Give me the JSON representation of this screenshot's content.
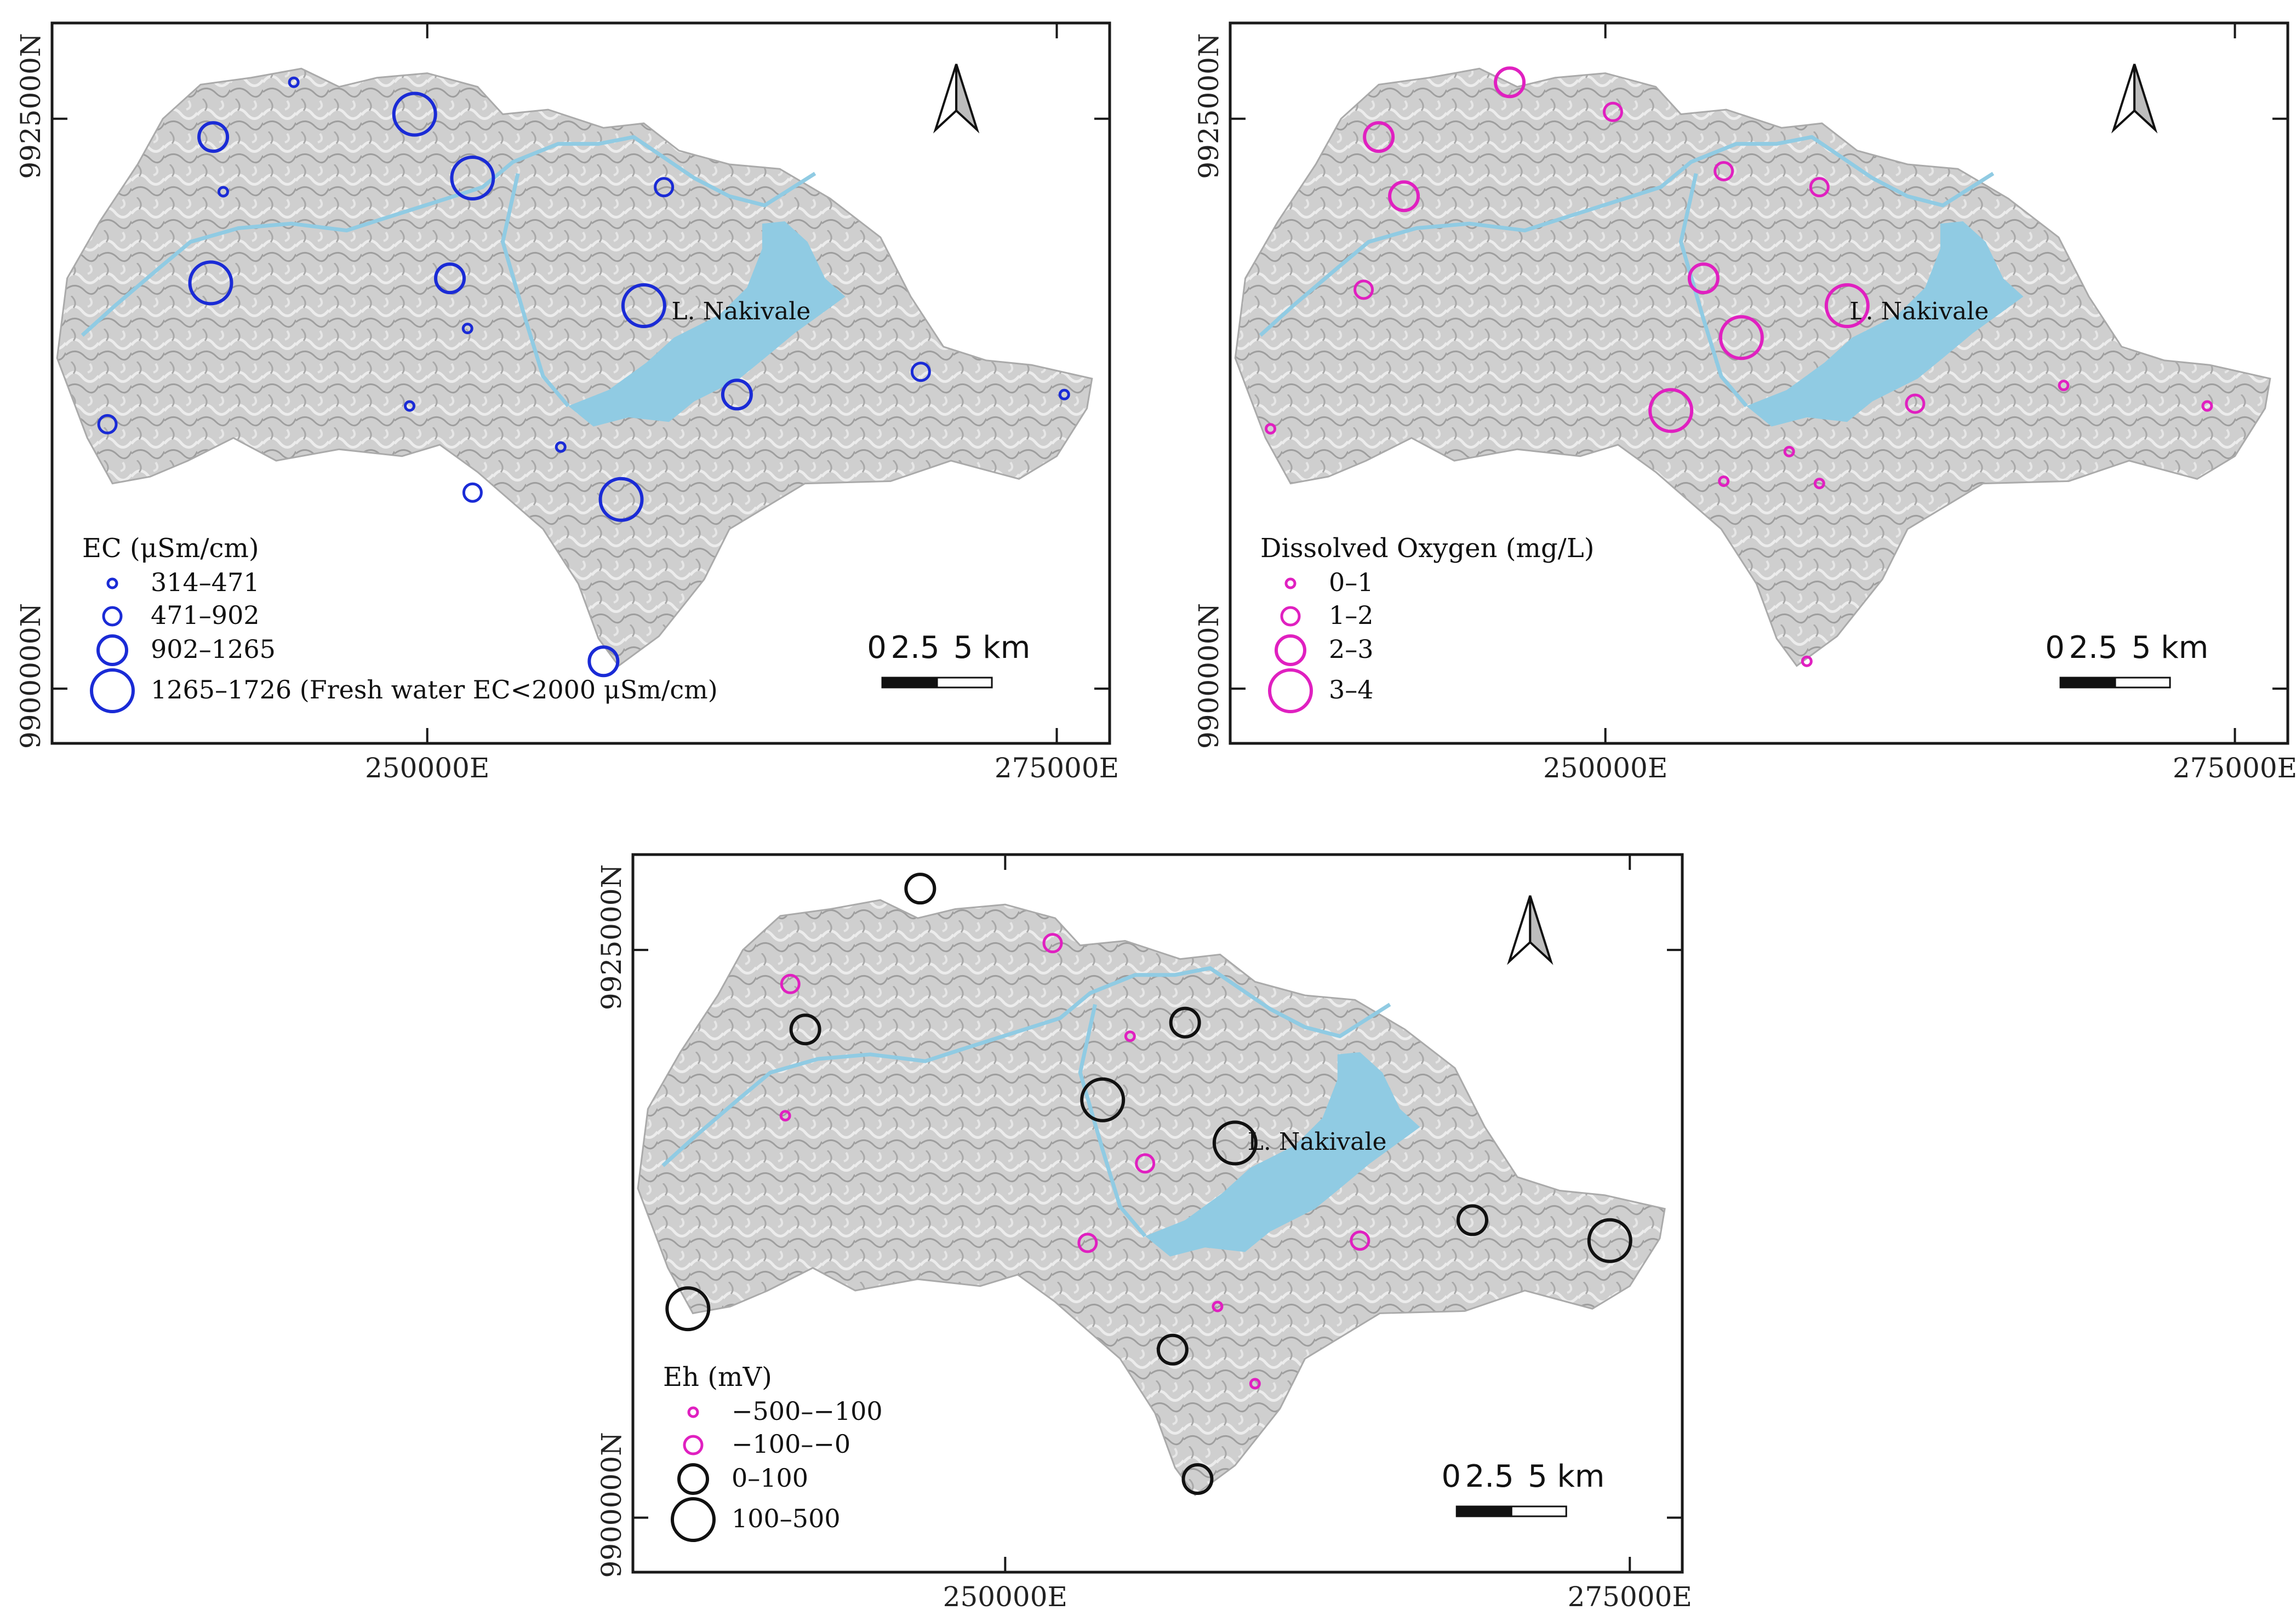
{
  "lake_label": "L. Nakivale",
  "coordinates": {
    "northing_top": "9925000N",
    "northing_bottom": "9900000N",
    "easting_left": "250000E",
    "easting_right": "275000E"
  },
  "scale_bar": {
    "labels": [
      "0",
      "2.5",
      "5 km"
    ]
  },
  "maps": [
    {
      "id": "ec",
      "legend_title": "EC (μSm/cm)",
      "color": "#1a2bd6",
      "classes": [
        {
          "label": "314–471"
        },
        {
          "label": "471–902"
        },
        {
          "label": "902–1265"
        },
        {
          "label": "1265–1726 (Fresh water EC<2000 μSm/cm)"
        }
      ],
      "points": [
        {
          "e": 244.7,
          "n": 9926.6,
          "c": 0
        },
        {
          "e": 249.5,
          "n": 9925.2,
          "c": 3
        },
        {
          "e": 241.5,
          "n": 9924.2,
          "c": 2
        },
        {
          "e": 251.8,
          "n": 9922.4,
          "c": 3
        },
        {
          "e": 241.9,
          "n": 9921.8,
          "c": 0
        },
        {
          "e": 259.4,
          "n": 9922.0,
          "c": 1
        },
        {
          "e": 241.4,
          "n": 9917.8,
          "c": 3
        },
        {
          "e": 250.9,
          "n": 9918.0,
          "c": 2
        },
        {
          "e": 258.6,
          "n": 9916.8,
          "c": 3
        },
        {
          "e": 251.6,
          "n": 9915.8,
          "c": 0
        },
        {
          "e": 269.6,
          "n": 9913.9,
          "c": 1
        },
        {
          "e": 262.3,
          "n": 9912.9,
          "c": 2
        },
        {
          "e": 275.3,
          "n": 9912.9,
          "c": 0
        },
        {
          "e": 249.3,
          "n": 9912.4,
          "c": 0
        },
        {
          "e": 237.3,
          "n": 9911.6,
          "c": 1
        },
        {
          "e": 255.3,
          "n": 9910.6,
          "c": 0
        },
        {
          "e": 251.8,
          "n": 9908.6,
          "c": 1
        },
        {
          "e": 257.7,
          "n": 9908.3,
          "c": 3
        },
        {
          "e": 257.0,
          "n": 9901.2,
          "c": 2
        }
      ]
    },
    {
      "id": "do",
      "legend_title": "Dissolved Oxygen (mg/L)",
      "color": "#e020c0",
      "classes": [
        {
          "label": "0–1"
        },
        {
          "label": "1–2"
        },
        {
          "label": "2–3"
        },
        {
          "label": "3–4"
        }
      ],
      "points": [
        {
          "e": 246.2,
          "n": 9926.6,
          "c": 2
        },
        {
          "e": 250.3,
          "n": 9925.3,
          "c": 1
        },
        {
          "e": 241.0,
          "n": 9924.2,
          "c": 2
        },
        {
          "e": 242.0,
          "n": 9921.6,
          "c": 2
        },
        {
          "e": 254.7,
          "n": 9922.7,
          "c": 1
        },
        {
          "e": 258.5,
          "n": 9922.0,
          "c": 1
        },
        {
          "e": 240.4,
          "n": 9917.5,
          "c": 1
        },
        {
          "e": 253.9,
          "n": 9918.0,
          "c": 2
        },
        {
          "e": 259.6,
          "n": 9916.8,
          "c": 3
        },
        {
          "e": 255.4,
          "n": 9915.4,
          "c": 3
        },
        {
          "e": 268.2,
          "n": 9913.3,
          "c": 0
        },
        {
          "e": 262.3,
          "n": 9912.5,
          "c": 1
        },
        {
          "e": 273.9,
          "n": 9912.4,
          "c": 0
        },
        {
          "e": 252.6,
          "n": 9912.2,
          "c": 3
        },
        {
          "e": 236.7,
          "n": 9911.4,
          "c": 0
        },
        {
          "e": 257.3,
          "n": 9910.4,
          "c": 0
        },
        {
          "e": 254.7,
          "n": 9909.1,
          "c": 0
        },
        {
          "e": 258.5,
          "n": 9909.0,
          "c": 0
        },
        {
          "e": 258.0,
          "n": 9901.2,
          "c": 0
        }
      ]
    },
    {
      "id": "eh",
      "legend_title": "Eh (mV)",
      "classes": [
        {
          "label": "−500–−100",
          "color": "#e020c0"
        },
        {
          "label": "−100–−0",
          "color": "#e020c0"
        },
        {
          "label": "0–100",
          "color": "#111111"
        },
        {
          "label": "100–500",
          "color": "#111111"
        }
      ],
      "points": [
        {
          "e": 246.6,
          "n": 9927.7,
          "c": 2
        },
        {
          "e": 251.9,
          "n": 9925.3,
          "c": 1
        },
        {
          "e": 241.4,
          "n": 9923.5,
          "c": 1
        },
        {
          "e": 242.0,
          "n": 9921.5,
          "c": 2
        },
        {
          "e": 257.2,
          "n": 9921.8,
          "c": 2
        },
        {
          "e": 255.0,
          "n": 9921.2,
          "c": 0
        },
        {
          "e": 253.9,
          "n": 9918.4,
          "c": 3
        },
        {
          "e": 241.2,
          "n": 9917.7,
          "c": 0
        },
        {
          "e": 259.2,
          "n": 9916.5,
          "c": 3
        },
        {
          "e": 255.6,
          "n": 9915.6,
          "c": 1
        },
        {
          "e": 268.7,
          "n": 9913.1,
          "c": 2
        },
        {
          "e": 274.2,
          "n": 9912.2,
          "c": 3
        },
        {
          "e": 253.3,
          "n": 9912.1,
          "c": 1
        },
        {
          "e": 264.2,
          "n": 9912.2,
          "c": 1
        },
        {
          "e": 237.3,
          "n": 9909.2,
          "c": 3
        },
        {
          "e": 258.5,
          "n": 9909.3,
          "c": 0
        },
        {
          "e": 256.7,
          "n": 9907.4,
          "c": 2
        },
        {
          "e": 260.0,
          "n": 9905.9,
          "c": 0
        },
        {
          "e": 257.7,
          "n": 9901.7,
          "c": 2
        }
      ]
    }
  ]
}
